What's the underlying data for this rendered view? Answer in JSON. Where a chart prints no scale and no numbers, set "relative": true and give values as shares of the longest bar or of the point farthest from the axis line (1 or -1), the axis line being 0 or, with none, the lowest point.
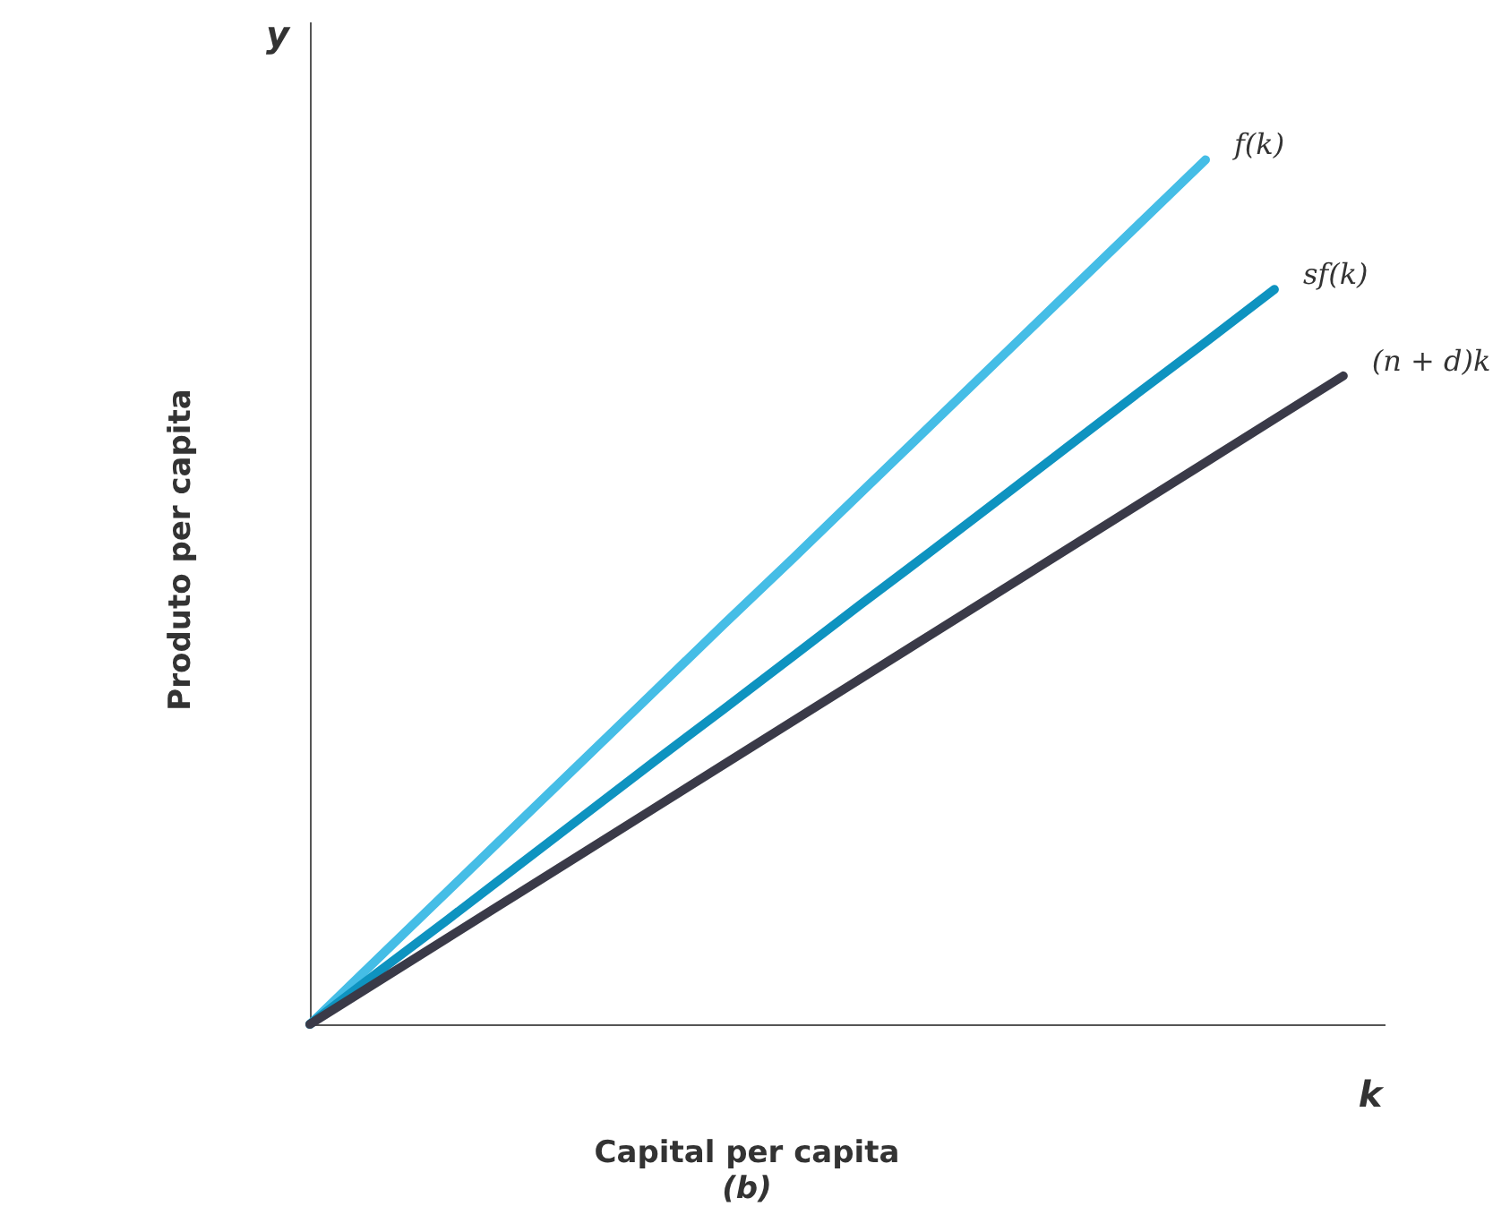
{
  "chart_data": {
    "type": "line",
    "relative": true,
    "xlabel": "Capital per capita",
    "ylabel": "Produto per capita",
    "annotations": [
      "y",
      "k",
      "(b)"
    ],
    "legend": false,
    "grid": false,
    "marker": "none",
    "line_style": "solid",
    "categories": [
      null,
      null,
      null,
      null,
      null,
      null,
      null,
      null,
      null,
      null,
      null,
      null,
      null,
      null,
      null,
      null
    ],
    "series": [
      {
        "name": "f(k)",
        "color": "#45bde6",
        "values": [
          0,
          0.077,
          0.154,
          0.231,
          0.308,
          0.385,
          0.462,
          0.538,
          0.615,
          0.692,
          0.769,
          0.846,
          0.923,
          1,
          null,
          null
        ]
      },
      {
        "name": "sf(k)",
        "color": "#0e93c0",
        "values": [
          0,
          0.061,
          0.121,
          0.182,
          0.243,
          0.304,
          0.364,
          0.425,
          0.486,
          0.546,
          0.607,
          0.668,
          0.729,
          0.789,
          0.85,
          null
        ]
      },
      {
        "name": "(n + d)k",
        "color": "#3a3a48",
        "values": [
          0,
          0.05,
          0.1,
          0.15,
          0.2,
          0.25,
          0.3,
          0.35,
          0.4,
          0.45,
          0.5,
          0.55,
          0.6,
          0.65,
          0.7,
          0.75
        ]
      }
    ]
  }
}
